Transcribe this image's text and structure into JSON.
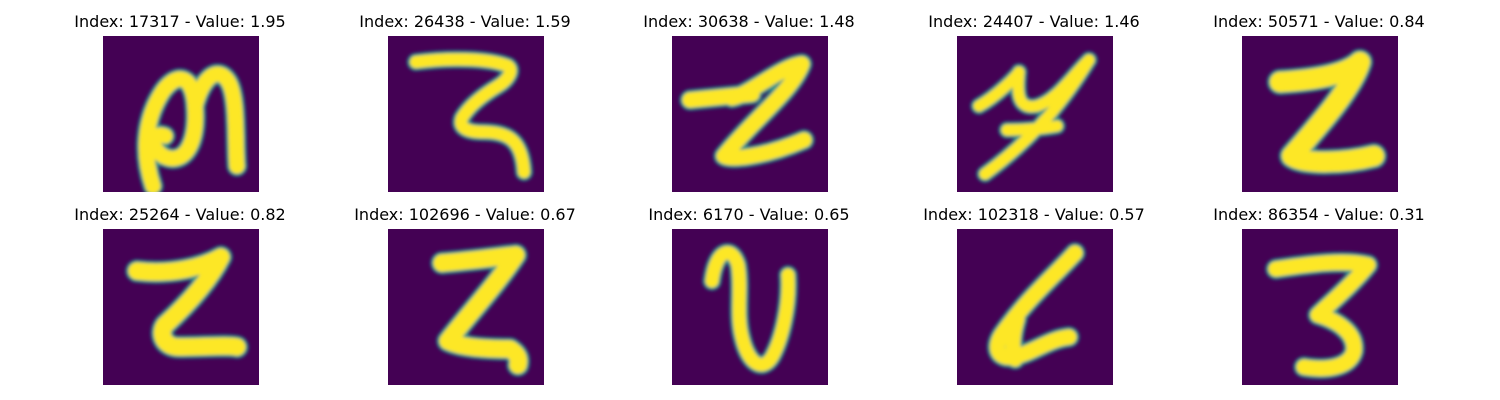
{
  "colors": {
    "background": "#440154",
    "mid": "#21918c",
    "stroke": "#fde725"
  },
  "tiles": [
    {
      "index": "17317",
      "value": "1.95",
      "label": "Index: 17317 - Value: 1.95",
      "glyph": "n-loop"
    },
    {
      "index": "26438",
      "value": "1.59",
      "label": "Index: 26438 - Value: 1.59",
      "glyph": "two"
    },
    {
      "index": "30638",
      "value": "1.48",
      "label": "Index: 30638 - Value: 1.48",
      "glyph": "z-bar"
    },
    {
      "index": "24407",
      "value": "1.46",
      "label": "Index: 24407 - Value: 1.46",
      "glyph": "y-cursive"
    },
    {
      "index": "50571",
      "value": "0.84",
      "label": "Index: 50571 - Value: 0.84",
      "glyph": "z-bold"
    },
    {
      "index": "25264",
      "value": "0.82",
      "label": "Index: 25264 - Value: 0.82",
      "glyph": "z-small"
    },
    {
      "index": "102696",
      "value": "0.67",
      "label": "Index: 102696 - Value: 0.67",
      "glyph": "z-narrow"
    },
    {
      "index": "6170",
      "value": "0.65",
      "label": "Index: 6170 - Value: 0.65",
      "glyph": "u-curl"
    },
    {
      "index": "102318",
      "value": "0.57",
      "label": "Index: 102318 - Value: 0.57",
      "glyph": "four"
    },
    {
      "index": "86354",
      "value": "0.31",
      "label": "Index: 86354 - Value: 0.31",
      "glyph": "three"
    }
  ]
}
